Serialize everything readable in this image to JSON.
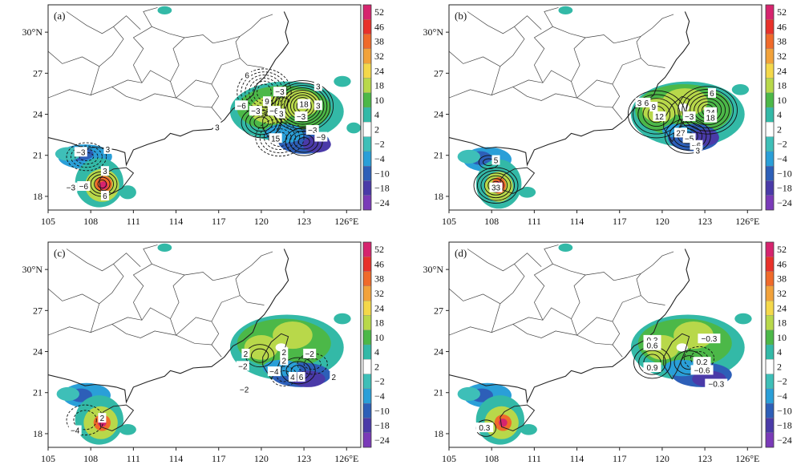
{
  "figure": {
    "x_ticks": [
      "105",
      "108",
      "111",
      "114",
      "117",
      "120",
      "123",
      "126°E"
    ],
    "y_ticks": [
      "18",
      "21",
      "24",
      "27",
      "30°N"
    ],
    "lon_values": [
      105,
      108,
      111,
      114,
      117,
      120,
      123,
      126
    ],
    "lat_values": [
      18,
      21,
      24,
      27,
      30
    ],
    "colorbar": {
      "labels": [
        "52",
        "46",
        "38",
        "32",
        "24",
        "18",
        "10",
        "4",
        "2",
        "−2",
        "−4",
        "−10",
        "−18",
        "−24"
      ],
      "colors": [
        "#d6246e",
        "#e8312a",
        "#f06a2a",
        "#f2a23a",
        "#f4d84a",
        "#b8d84a",
        "#4cb848",
        "#33b9a7",
        "#ffffff",
        "#3ebfb8",
        "#2a9fd8",
        "#2d5fb8",
        "#4a3aa8",
        "#7a3ab8"
      ]
    }
  },
  "panels": [
    {
      "label": "(a)",
      "contour_labels": [
        "6",
        "−3",
        "3",
        "−6",
        "−3",
        "9",
        "−6",
        "3",
        "18",
        "3",
        "−3",
        "3",
        "−3",
        "15",
        "−9",
        "−3",
        "3",
        "−3",
        "−6",
        "3",
        "6"
      ]
    },
    {
      "label": "(b)",
      "contour_labels": [
        "3",
        "6",
        "9",
        "12",
        "−3",
        "6",
        "24",
        "18",
        "27",
        "−5",
        "−6",
        "3",
        "5",
        "33"
      ]
    },
    {
      "label": "(c)",
      "contour_labels": [
        "2",
        "−2",
        "2",
        "−2",
        "2",
        "−4",
        "4",
        "6",
        "2",
        "−2",
        "2",
        "−4"
      ]
    },
    {
      "label": "(d)",
      "contour_labels": [
        "−0.3",
        "0.3",
        "0.6",
        "0.9",
        "0.2",
        "−0.6",
        "−0.3",
        "0.3"
      ]
    }
  ],
  "chart_data": {
    "type": "heatmap",
    "panels": [
      "(a)",
      "(b)",
      "(c)",
      "(d)"
    ],
    "x_ticks": [
      105,
      108,
      111,
      114,
      117,
      120,
      123,
      126
    ],
    "y_ticks": [
      18,
      21,
      24,
      27,
      30
    ],
    "xlim": [
      105,
      127
    ],
    "ylim": [
      17,
      32
    ],
    "colorbar_levels": [
      52,
      46,
      38,
      32,
      24,
      18,
      10,
      4,
      2,
      -2,
      -4,
      -10,
      -18,
      -24
    ]
  }
}
